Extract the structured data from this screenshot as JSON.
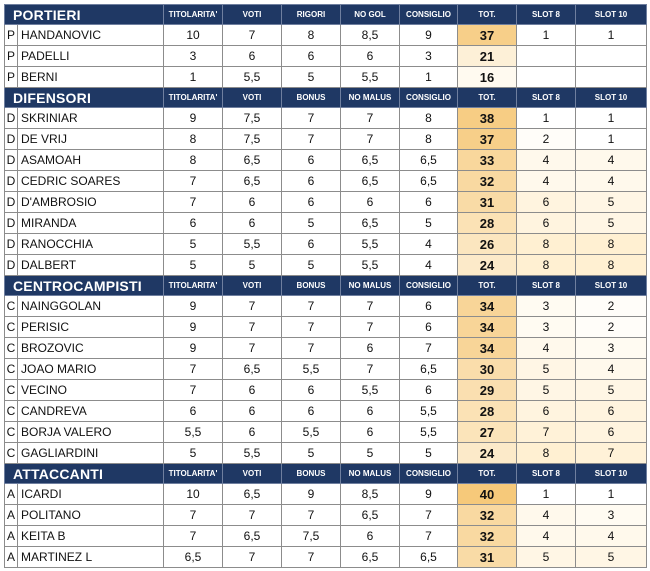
{
  "sections": [
    {
      "title": "PORTIERI",
      "columns": [
        "TITOLARITA'",
        "VOTI",
        "RIGORI",
        "NO GOL",
        "CONSIGLIO",
        "TOT.",
        "SLOT 8",
        "SLOT 10"
      ],
      "rows": [
        {
          "role": "P",
          "name": "HANDANOVIC",
          "values": [
            "10",
            "7",
            "8",
            "8,5",
            "9"
          ],
          "tot": "37",
          "slot8": "1",
          "slot10": "1"
        },
        {
          "role": "P",
          "name": "PADELLI",
          "values": [
            "3",
            "6",
            "6",
            "6",
            "3"
          ],
          "tot": "21",
          "slot8": "",
          "slot10": ""
        },
        {
          "role": "P",
          "name": "BERNI",
          "values": [
            "1",
            "5,5",
            "5",
            "5,5",
            "1"
          ],
          "tot": "16",
          "slot8": "",
          "slot10": ""
        }
      ]
    },
    {
      "title": "DIFENSORI",
      "columns": [
        "TITOLARITA'",
        "VOTI",
        "BONUS",
        "NO MALUS",
        "CONSIGLIO",
        "TOT.",
        "SLOT 8",
        "SLOT 10"
      ],
      "rows": [
        {
          "role": "D",
          "name": "SKRINIAR",
          "values": [
            "9",
            "7,5",
            "7",
            "7",
            "8"
          ],
          "tot": "38",
          "slot8": "1",
          "slot10": "1"
        },
        {
          "role": "D",
          "name": "DE VRIJ",
          "values": [
            "8",
            "7,5",
            "7",
            "7",
            "8"
          ],
          "tot": "37",
          "slot8": "2",
          "slot10": "1"
        },
        {
          "role": "D",
          "name": "ASAMOAH",
          "values": [
            "8",
            "6,5",
            "6",
            "6,5",
            "6,5"
          ],
          "tot": "33",
          "slot8": "4",
          "slot10": "4"
        },
        {
          "role": "D",
          "name": "CEDRIC SOARES",
          "values": [
            "7",
            "6,5",
            "6",
            "6,5",
            "6,5"
          ],
          "tot": "32",
          "slot8": "4",
          "slot10": "4"
        },
        {
          "role": "D",
          "name": "D'AMBROSIO",
          "values": [
            "7",
            "6",
            "6",
            "6",
            "6"
          ],
          "tot": "31",
          "slot8": "6",
          "slot10": "5"
        },
        {
          "role": "D",
          "name": "MIRANDA",
          "values": [
            "6",
            "6",
            "5",
            "6,5",
            "5"
          ],
          "tot": "28",
          "slot8": "6",
          "slot10": "5"
        },
        {
          "role": "D",
          "name": "RANOCCHIA",
          "values": [
            "5",
            "5,5",
            "6",
            "5,5",
            "4"
          ],
          "tot": "26",
          "slot8": "8",
          "slot10": "8"
        },
        {
          "role": "D",
          "name": "DALBERT",
          "values": [
            "5",
            "5",
            "5",
            "5,5",
            "4"
          ],
          "tot": "24",
          "slot8": "8",
          "slot10": "8"
        }
      ]
    },
    {
      "title": "CENTROCAMPISTI",
      "columns": [
        "TITOLARITA'",
        "VOTI",
        "BONUS",
        "NO MALUS",
        "CONSIGLIO",
        "TOT.",
        "SLOT 8",
        "SLOT 10"
      ],
      "rows": [
        {
          "role": "C",
          "name": "NAINGGOLAN",
          "values": [
            "9",
            "7",
            "7",
            "7",
            "6"
          ],
          "tot": "34",
          "slot8": "3",
          "slot10": "2"
        },
        {
          "role": "C",
          "name": "PERISIC",
          "values": [
            "9",
            "7",
            "7",
            "7",
            "6"
          ],
          "tot": "34",
          "slot8": "3",
          "slot10": "2"
        },
        {
          "role": "C",
          "name": "BROZOVIC",
          "values": [
            "9",
            "7",
            "7",
            "6",
            "7"
          ],
          "tot": "34",
          "slot8": "4",
          "slot10": "3"
        },
        {
          "role": "C",
          "name": "JOAO MARIO",
          "values": [
            "7",
            "6,5",
            "5,5",
            "7",
            "6,5"
          ],
          "tot": "30",
          "slot8": "5",
          "slot10": "4"
        },
        {
          "role": "C",
          "name": "VECINO",
          "values": [
            "7",
            "6",
            "6",
            "5,5",
            "6"
          ],
          "tot": "29",
          "slot8": "5",
          "slot10": "5"
        },
        {
          "role": "C",
          "name": "CANDREVA",
          "values": [
            "6",
            "6",
            "6",
            "6",
            "5,5"
          ],
          "tot": "28",
          "slot8": "6",
          "slot10": "6"
        },
        {
          "role": "C",
          "name": "BORJA VALERO",
          "values": [
            "5,5",
            "6",
            "5,5",
            "6",
            "5,5"
          ],
          "tot": "27",
          "slot8": "7",
          "slot10": "6"
        },
        {
          "role": "C",
          "name": "GAGLIARDINI",
          "values": [
            "5",
            "5,5",
            "5",
            "5",
            "5"
          ],
          "tot": "24",
          "slot8": "8",
          "slot10": "7"
        }
      ]
    },
    {
      "title": "ATTACCANTI",
      "columns": [
        "TITOLARITA'",
        "VOTI",
        "BONUS",
        "NO MALUS",
        "CONSIGLIO",
        "TOT.",
        "SLOT 8",
        "SLOT 10"
      ],
      "rows": [
        {
          "role": "A",
          "name": "ICARDI",
          "values": [
            "10",
            "6,5",
            "9",
            "8,5",
            "9"
          ],
          "tot": "40",
          "slot8": "1",
          "slot10": "1"
        },
        {
          "role": "A",
          "name": "POLITANO",
          "values": [
            "7",
            "7",
            "7",
            "6,5",
            "7"
          ],
          "tot": "32",
          "slot8": "4",
          "slot10": "3"
        },
        {
          "role": "A",
          "name": "KEITA B",
          "values": [
            "7",
            "6,5",
            "7,5",
            "6",
            "7"
          ],
          "tot": "32",
          "slot8": "4",
          "slot10": "4"
        },
        {
          "role": "A",
          "name": "MARTINEZ L",
          "values": [
            "6,5",
            "7",
            "7",
            "6,5",
            "6,5"
          ],
          "tot": "31",
          "slot8": "5",
          "slot10": "5"
        }
      ]
    }
  ],
  "colors": {
    "header_bg": "#1f3864",
    "header_text": "#ffffff",
    "tot_high": "#f6c97a",
    "tot_low": "#fffaf0",
    "slot_high": "#fff0d2",
    "slot_low": "#ffffff"
  }
}
